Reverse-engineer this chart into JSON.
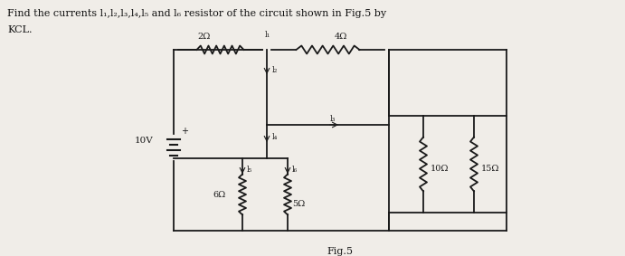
{
  "title_line1": "Find the currents l₁,l₂,l₃,l₄,l₅ and l₆ resistor of the circuit shown in Fig.5 by",
  "title_line2": "KCL.",
  "fig_label": "Fig.5",
  "background_color": "#f0ede8",
  "line_color": "#1a1a1a",
  "R1_label": "2Ω",
  "R2_label": "4Ω",
  "R3_label": "10Ω",
  "R4_label": "15Ω",
  "R5_label": "6Ω",
  "R6_label": "5Ω",
  "vs_label": "10V",
  "I1_label": "l₁",
  "I2_label": "l₂",
  "I3_label": "l₃",
  "I4_label": "l₄",
  "I5_label": "l₅",
  "I6_label": "l₆",
  "plus_label": "+"
}
